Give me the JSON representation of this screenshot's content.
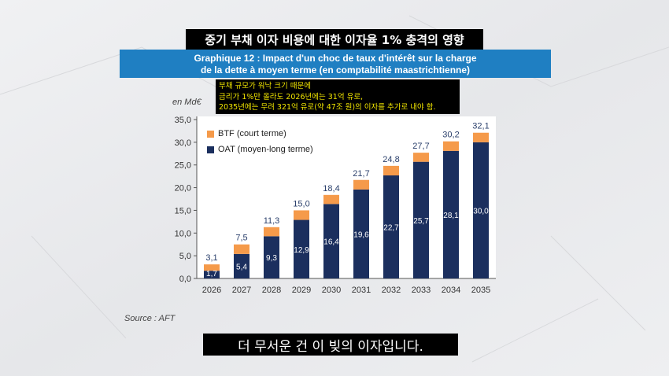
{
  "video": {
    "top_caption": "중기 부채 이자 비용에 대한 이자율 1% 충격의 영향",
    "note_lines": [
      "부채 규모가 워낙 크기 때문에",
      "금리가 1%만 올라도 2026년에는 31억 유로,",
      "2035년에는 무려 321억 유로(약 47조 원)의 이자를 추가로 내야 함."
    ],
    "subtitle": "더 무서운 건 이 빚의 이자입니다."
  },
  "figure": {
    "title_line1": "Graphique 12 : Impact d'un choc de taux d'intérêt sur la charge",
    "title_line2": "de la dette à moyen terme (en comptabilité maastrichtienne)",
    "unit": "en Md€",
    "source": "Source : AFT"
  },
  "colors": {
    "oat": "#1b2f5e",
    "btf": "#f59a4a",
    "header": "#1f7fc2"
  },
  "chart_data": {
    "type": "bar",
    "stacked": true,
    "categories": [
      "2026",
      "2027",
      "2028",
      "2029",
      "2030",
      "2031",
      "2032",
      "2033",
      "2034",
      "2035"
    ],
    "series": [
      {
        "name": "OAT (moyen-long terme)",
        "values": [
          1.7,
          5.4,
          9.3,
          12.9,
          16.4,
          19.6,
          22.7,
          25.7,
          28.1,
          30.0
        ],
        "labels": [
          "1,7",
          "5,4",
          "9,3",
          "12,9",
          "16,4",
          "19,6",
          "22,7",
          "25,7",
          "28,1",
          "30,0"
        ]
      },
      {
        "name": "BTF (court terme)",
        "values": [
          1.4,
          2.1,
          2.0,
          2.1,
          2.0,
          2.1,
          2.1,
          2.0,
          2.1,
          2.1
        ]
      }
    ],
    "totals": [
      3.1,
      7.5,
      11.3,
      15.0,
      18.4,
      21.7,
      24.8,
      27.7,
      30.2,
      32.1
    ],
    "total_labels": [
      "3,1",
      "7,5",
      "11,3",
      "15,0",
      "18,4",
      "21,7",
      "24,8",
      "27,7",
      "30,2",
      "32,1"
    ],
    "yticks": [
      "0,0",
      "5,0",
      "10,0",
      "15,0",
      "20,0",
      "25,0",
      "30,0",
      "35,0"
    ],
    "ylim": [
      0,
      35
    ],
    "legend_position": "top-left",
    "grid": false
  }
}
